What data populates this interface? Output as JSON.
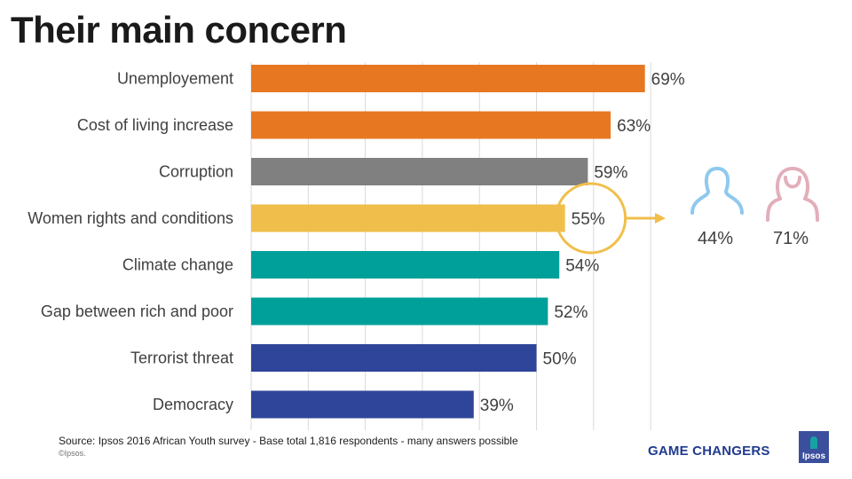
{
  "title": "Their main concern",
  "chart_data": {
    "type": "bar",
    "orientation": "horizontal",
    "categories": [
      "Unemployement",
      "Cost of living increase",
      "Corruption",
      "Women rights and conditions",
      "Climate change",
      "Gap between rich and poor",
      "Terrorist threat",
      "Democracy"
    ],
    "values": [
      69,
      63,
      59,
      55,
      54,
      52,
      50,
      39
    ],
    "value_labels": [
      "69%",
      "63%",
      "59%",
      "55%",
      "54%",
      "52%",
      "50%",
      "39%"
    ],
    "colors": [
      "#e87722",
      "#e87722",
      "#808080",
      "#f0be4a",
      "#00a09a",
      "#00a09a",
      "#2f4599",
      "#2f4599"
    ],
    "xlim": [
      0,
      70
    ],
    "grid": true,
    "highlight": {
      "category": "Women rights and conditions",
      "ring_color": "#f0be4a",
      "breakdown": [
        {
          "group": "male",
          "icon": "male-person-icon",
          "value": "44%",
          "color": "#8ec9ee"
        },
        {
          "group": "female",
          "icon": "female-person-icon",
          "value": "71%",
          "color": "#e3aebb"
        }
      ]
    }
  },
  "footer": {
    "source": "Source: Ipsos  2016 African Youth survey - Base total 1,816 respondents - many answers possible",
    "copyright": "©Ipsos.",
    "brand": "GAME CHANGERS",
    "logo_text": "Ipsos"
  }
}
